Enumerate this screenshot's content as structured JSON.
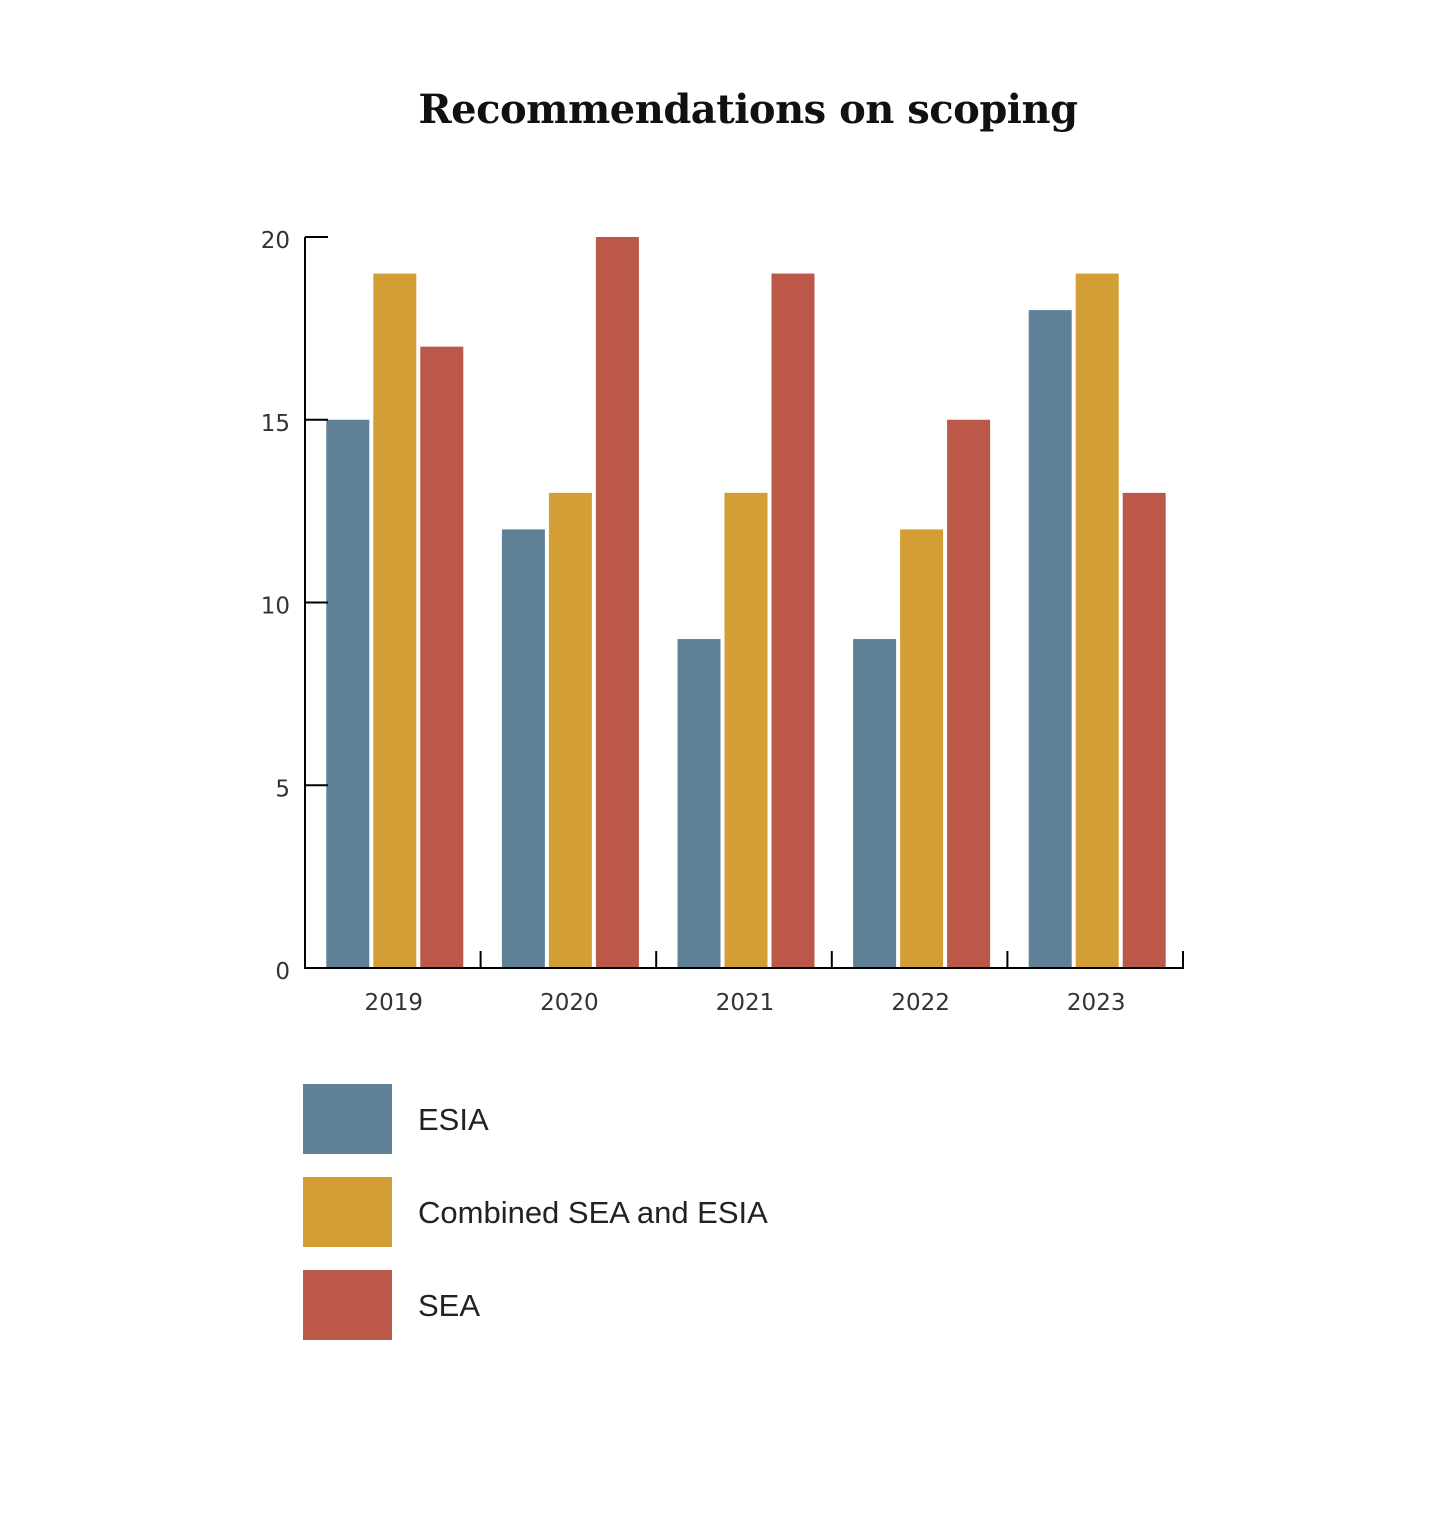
{
  "chart_data": {
    "type": "bar",
    "title": "Recommendations on scoping",
    "xlabel": "",
    "ylabel": "",
    "categories": [
      "2019",
      "2020",
      "2021",
      "2022",
      "2023"
    ],
    "series": [
      {
        "name": "ESIA",
        "color": "#5e8198",
        "values": [
          15,
          12,
          9,
          9,
          18
        ]
      },
      {
        "name": "Combined SEA and ESIA",
        "color": "#d49e36",
        "values": [
          19,
          13,
          13,
          12,
          19
        ]
      },
      {
        "name": "SEA",
        "color": "#bb5849",
        "values": [
          17,
          20,
          19,
          15,
          13
        ]
      }
    ],
    "ylim": [
      0,
      20
    ],
    "yticks": [
      "0",
      "5",
      "10",
      "15",
      "20"
    ],
    "grid": false,
    "legend_position": "bottom-left"
  }
}
